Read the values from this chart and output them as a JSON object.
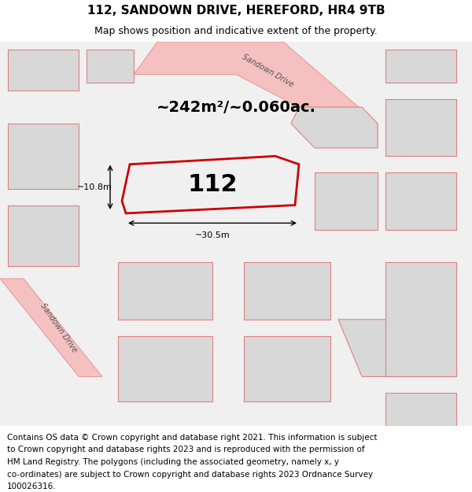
{
  "title": "112, SANDOWN DRIVE, HEREFORD, HR4 9TB",
  "subtitle": "Map shows position and indicative extent of the property.",
  "footer": "Contains OS data © Crown copyright and database right 2021. This information is subject to Crown copyright and database rights 2023 and is reproduced with the permission of HM Land Registry. The polygons (including the associated geometry, namely x, y co-ordinates) are subject to Crown copyright and database rights 2023 Ordnance Survey 100026316.",
  "area_text": "~242m²/~0.060ac.",
  "property_label": "112",
  "dim_width": "~30.5m",
  "dim_height": "~10.8m",
  "bg_color": "#e8e8e8",
  "map_bg": "#f0f0f0",
  "road_color": "#f5c0c0",
  "road_border": "#e08080",
  "highlight_color": "#cc0000",
  "highlight_fill": "none",
  "block_fill": "#d8d8d8",
  "block_border": "#e08080",
  "title_fontsize": 11,
  "subtitle_fontsize": 9,
  "footer_fontsize": 7.5
}
